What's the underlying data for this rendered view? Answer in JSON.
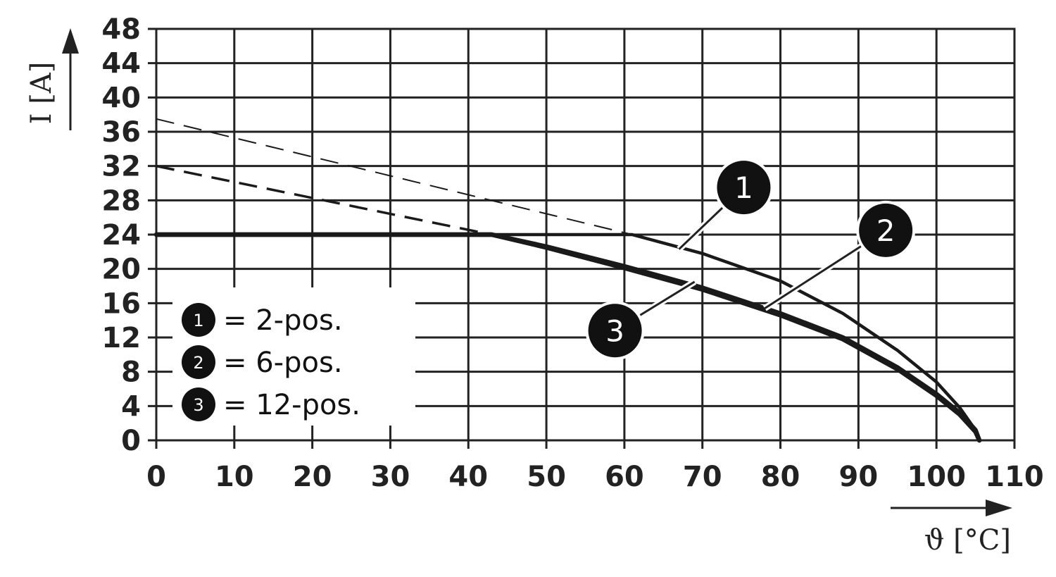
{
  "chart_data": {
    "type": "line",
    "xlabel": "ϑ [°C]",
    "ylabel": "I [A]",
    "xlim": [
      0,
      110
    ],
    "ylim": [
      0,
      48
    ],
    "x_ticks": [
      "0",
      "10",
      "20",
      "30",
      "40",
      "50",
      "60",
      "70",
      "80",
      "90",
      "100",
      "110"
    ],
    "y_ticks": [
      "0",
      "4",
      "8",
      "12",
      "16",
      "20",
      "24",
      "28",
      "32",
      "36",
      "40",
      "44",
      "48"
    ],
    "grid": true,
    "legend_position": "bottom-left",
    "legend": [
      {
        "marker": "1",
        "text": "= 2-pos."
      },
      {
        "marker": "2",
        "text": "= 6-pos."
      },
      {
        "marker": "3",
        "text": "= 12-pos."
      }
    ],
    "series": [
      {
        "marker": "1",
        "color": "#1a1a1a",
        "points": [
          [
            0,
            24
          ],
          [
            61,
            24
          ],
          [
            70,
            21.8
          ],
          [
            80,
            18.6
          ],
          [
            88,
            14.8
          ],
          [
            95,
            10.5
          ],
          [
            100,
            6.8
          ],
          [
            103,
            3.8
          ],
          [
            105,
            1.2
          ],
          [
            105.5,
            0
          ]
        ],
        "extrapolated": [
          [
            0,
            37.5
          ],
          [
            61,
            24
          ]
        ]
      },
      {
        "marker": "2",
        "color": "#1a1a1a",
        "points": [
          [
            0,
            24
          ],
          [
            43,
            24
          ],
          [
            50,
            22.6
          ],
          [
            60,
            20.3
          ],
          [
            70,
            17.8
          ],
          [
            80,
            14.8
          ],
          [
            88,
            12
          ],
          [
            95,
            8.5
          ],
          [
            100,
            5.4
          ],
          [
            103,
            3.2
          ],
          [
            105,
            1.2
          ],
          [
            105.5,
            0
          ]
        ],
        "extrapolated": [
          [
            0,
            32
          ],
          [
            43,
            24
          ]
        ]
      },
      {
        "marker": "3",
        "color": "#1a1a1a",
        "points": [
          [
            0,
            24
          ],
          [
            43,
            24
          ],
          [
            50,
            22.5
          ],
          [
            60,
            20.1
          ],
          [
            70,
            17.6
          ],
          [
            80,
            14.6
          ],
          [
            88,
            11.8
          ],
          [
            95,
            8.3
          ],
          [
            100,
            5.2
          ],
          [
            103,
            3
          ],
          [
            105,
            1
          ],
          [
            105.5,
            0
          ]
        ]
      }
    ],
    "callouts": [
      {
        "marker": "1",
        "at": [
          67,
          22.3
        ],
        "label_at": [
          75.3,
          29.5
        ]
      },
      {
        "marker": "2",
        "at": [
          78,
          15.4
        ],
        "label_at": [
          93.5,
          24.5
        ]
      },
      {
        "marker": "3",
        "at": [
          69,
          18.5
        ],
        "label_at": [
          58.8,
          12.8
        ]
      }
    ]
  }
}
